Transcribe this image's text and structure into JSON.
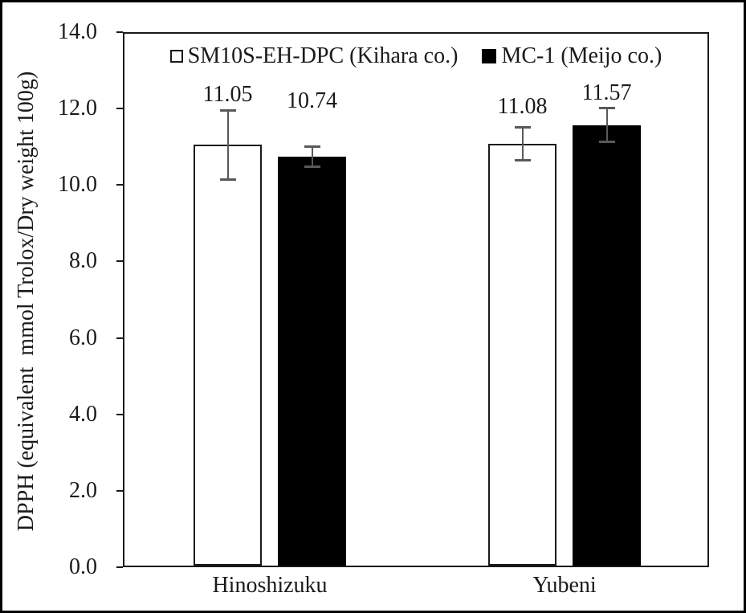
{
  "chart_data": {
    "type": "bar",
    "title": "",
    "xlabel": "",
    "ylabel": "DPPH (equivalent  mmol Trolox/Dry weight 100g)",
    "ylim": [
      0,
      14
    ],
    "ytick_step": 2,
    "ytick_labels": [
      "0.0",
      "2.0",
      "4.0",
      "6.0",
      "8.0",
      "10.0",
      "12.0",
      "14.0"
    ],
    "categories": [
      "Hinoshizuku",
      "Yubeni"
    ],
    "series": [
      {
        "name": "SM10S-EH-DPC (Kihara co.)",
        "fill": "#ffffff",
        "values": [
          11.05,
          11.08
        ],
        "errors": [
          0.92,
          0.45
        ],
        "data_labels": [
          "11.05",
          "11.08"
        ]
      },
      {
        "name": "MC-1 (Meijo co.)",
        "fill": "#000000",
        "values": [
          10.74,
          11.57
        ],
        "errors": [
          0.27,
          0.45
        ],
        "data_labels": [
          "10.74",
          "11.57"
        ]
      }
    ],
    "legend_position": "top-inside",
    "grid": false,
    "error_bar_color": "#595959"
  }
}
